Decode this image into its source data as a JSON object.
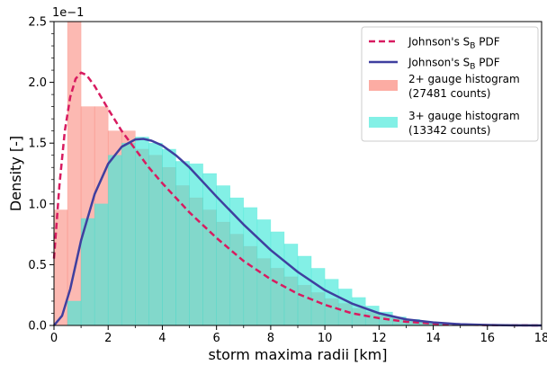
{
  "chart_data": {
    "type": "bar",
    "xlabel": "storm maxima radii  [km]",
    "ylabel": "Density  [-]",
    "offset_text": "1e−1",
    "xlim": [
      0,
      18
    ],
    "ylim": [
      0,
      2.5
    ],
    "xticks": [
      "0",
      "2",
      "4",
      "6",
      "8",
      "10",
      "12",
      "14",
      "16",
      "18"
    ],
    "yticks": [
      "0.0",
      "0.5",
      "1.0",
      "1.5",
      "2.0",
      "2.5"
    ],
    "bin_width": 0.5,
    "histograms": [
      {
        "name": "2+ gauge histogram\n(27481 counts)",
        "legend_line1": "2+ gauge histogram",
        "legend_line2": "(27481 counts)",
        "color": "#fa8072",
        "bin_starts": [
          0.0,
          0.5,
          1.0,
          1.5,
          2.0,
          2.5,
          3.0,
          3.5,
          4.0,
          4.5,
          5.0,
          5.5,
          6.0,
          6.5,
          7.0,
          7.5,
          8.0,
          8.5,
          9.0,
          9.5,
          10.0,
          10.5,
          11.0,
          11.5,
          12.0,
          12.5,
          13.0,
          13.5
        ],
        "values": [
          0.95,
          2.5,
          1.8,
          1.8,
          1.6,
          1.6,
          1.45,
          1.4,
          1.3,
          1.15,
          1.05,
          0.95,
          0.85,
          0.75,
          0.65,
          0.55,
          0.47,
          0.4,
          0.33,
          0.27,
          0.22,
          0.18,
          0.14,
          0.11,
          0.08,
          0.06,
          0.04,
          0.03
        ]
      },
      {
        "name": "3+ gauge histogram\n(13342 counts)",
        "legend_line1": "3+ gauge histogram",
        "legend_line2": "(13342 counts)",
        "color": "#40e8d8",
        "bin_starts": [
          0.5,
          1.0,
          1.5,
          2.0,
          2.5,
          3.0,
          3.5,
          4.0,
          4.5,
          5.0,
          5.5,
          6.0,
          6.5,
          7.0,
          7.5,
          8.0,
          8.5,
          9.0,
          9.5,
          10.0,
          10.5,
          11.0,
          11.5,
          12.0,
          12.5,
          13.0,
          13.5,
          14.0
        ],
        "values": [
          0.2,
          0.88,
          1.0,
          1.4,
          1.5,
          1.55,
          1.5,
          1.45,
          1.35,
          1.33,
          1.25,
          1.15,
          1.05,
          0.97,
          0.87,
          0.77,
          0.67,
          0.57,
          0.47,
          0.38,
          0.3,
          0.23,
          0.16,
          0.11,
          0.07,
          0.05,
          0.03,
          0.02
        ]
      }
    ],
    "curves": [
      {
        "name": "Johnson's S_B PDF",
        "legend_label": "Johnson's S",
        "legend_sub": "B",
        "legend_suffix": " PDF",
        "color": "#d81b60",
        "style": "dashed",
        "x": [
          0,
          0.2,
          0.4,
          0.6,
          0.8,
          1.0,
          1.2,
          1.5,
          2.0,
          2.5,
          3.0,
          3.5,
          4.0,
          5.0,
          6.0,
          7.0,
          8.0,
          9.0,
          10.0,
          11.0,
          12.0,
          13.0,
          14.0,
          15.0,
          16.0,
          17.0,
          18.0
        ],
        "y": [
          0.55,
          1.15,
          1.6,
          1.88,
          2.03,
          2.08,
          2.06,
          1.97,
          1.78,
          1.6,
          1.45,
          1.3,
          1.17,
          0.93,
          0.72,
          0.53,
          0.38,
          0.26,
          0.17,
          0.1,
          0.06,
          0.03,
          0.015,
          0.007,
          0.003,
          0.001,
          0.0
        ]
      },
      {
        "name": "Johnson's S_B PDF",
        "legend_label": "Johnson's S",
        "legend_sub": "B",
        "legend_suffix": " PDF",
        "color": "#3f3f9f",
        "style": "solid",
        "x": [
          0,
          0.3,
          0.6,
          1.0,
          1.5,
          2.0,
          2.5,
          3.0,
          3.3,
          3.6,
          4.0,
          4.5,
          5.0,
          5.5,
          6.0,
          7.0,
          8.0,
          9.0,
          10.0,
          11.0,
          12.0,
          13.0,
          14.0,
          15.0,
          16.0,
          17.0,
          18.0
        ],
        "y": [
          0.0,
          0.08,
          0.3,
          0.7,
          1.08,
          1.33,
          1.47,
          1.53,
          1.535,
          1.52,
          1.48,
          1.4,
          1.3,
          1.18,
          1.06,
          0.83,
          0.62,
          0.44,
          0.29,
          0.18,
          0.1,
          0.05,
          0.025,
          0.01,
          0.004,
          0.001,
          0.0
        ]
      }
    ],
    "legend_position": "top-right",
    "grid": false
  }
}
